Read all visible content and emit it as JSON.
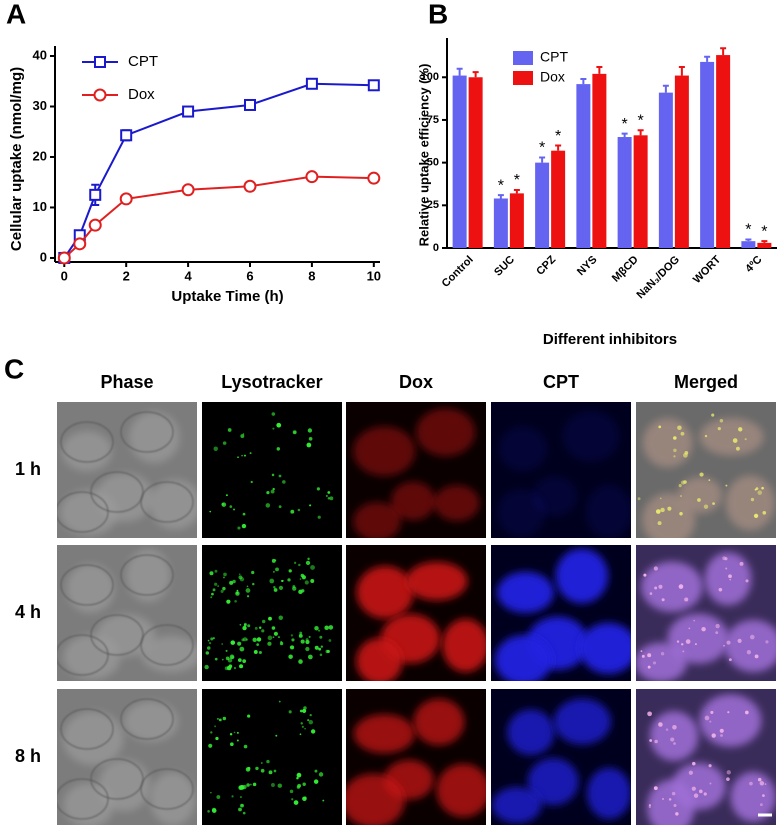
{
  "chart_data": [
    {
      "type": "line",
      "label": "A",
      "x_label": "Uptake Time (h)",
      "y_label": "Cellular uptake (nmol/mg)",
      "x": [
        0,
        0.5,
        1,
        2,
        4,
        6,
        8,
        10
      ],
      "series": [
        {
          "name": "CPT",
          "color": "#1a1acc",
          "marker": "square",
          "values": [
            0,
            4.5,
            12.5,
            24.3,
            29,
            30.3,
            34.5,
            34.2
          ],
          "errors": [
            0,
            0.5,
            2,
            1,
            0.5,
            0.5,
            0.5,
            0.5
          ]
        },
        {
          "name": "Dox",
          "color": "#e02020",
          "marker": "circle",
          "values": [
            0,
            2.8,
            6.5,
            11.7,
            13.5,
            14.2,
            16.1,
            15.8
          ],
          "errors": [
            0,
            0.5,
            0.8,
            0.5,
            0.3,
            0.3,
            0.3,
            0.3
          ]
        }
      ],
      "xlim": [
        -0.3,
        10.2
      ],
      "ylim": [
        -0.8,
        40
      ],
      "xticks": [
        0,
        2,
        4,
        6,
        8,
        10
      ],
      "yticks": [
        0,
        10,
        20,
        30,
        40
      ],
      "legend": "upper left"
    },
    {
      "type": "bar",
      "label": "B",
      "x_label": "Different inhibitors",
      "y_label": "Relative uptake efficiency (%)",
      "categories": [
        "Control",
        "SUC",
        "CPZ",
        "NYS",
        "MβCD",
        "NaN₃/DOG",
        "WORT",
        "4ºC"
      ],
      "series": [
        {
          "name": "CPT",
          "color": "#6464f0",
          "values": [
            101,
            29,
            50,
            96,
            65,
            91,
            109,
            4
          ],
          "errors": [
            4,
            2,
            3,
            3,
            2,
            4,
            3,
            1
          ]
        },
        {
          "name": "Dox",
          "color": "#ee1111",
          "values": [
            100,
            32,
            57,
            102,
            66,
            101,
            113,
            3
          ],
          "errors": [
            3,
            2,
            3,
            4,
            3,
            5,
            4,
            1
          ]
        }
      ],
      "ylim": [
        0,
        123
      ],
      "yticks": [
        0,
        25,
        50,
        75,
        100
      ],
      "legend": "upper left",
      "significance_mark": "*",
      "significant_categories": [
        "SUC",
        "CPZ",
        "MβCD",
        "4ºC"
      ]
    }
  ],
  "panel_c": {
    "label": "C",
    "columns": [
      "Phase",
      "Lysotracker",
      "Dox",
      "CPT",
      "Merged"
    ],
    "rows": [
      "1 h",
      "4 h",
      "8 h"
    ]
  }
}
